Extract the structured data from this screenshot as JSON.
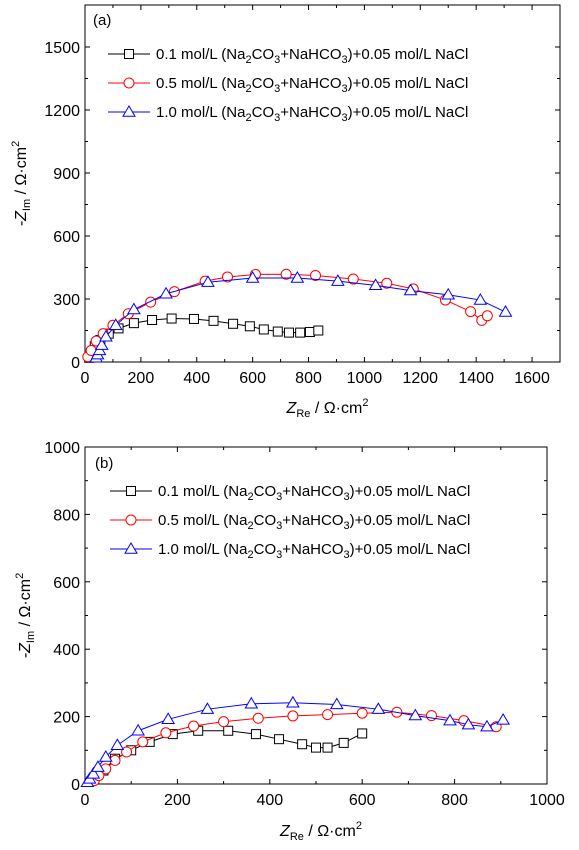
{
  "colors": {
    "s1": "#000000",
    "s2": "#ff0000",
    "s3": "#0000ff"
  },
  "chart_data": [
    {
      "type": "scatter",
      "panel_label": "(a)",
      "xlabel_main": "Z",
      "xlabel_sub": "Re",
      "xlabel_unit": " / Ω·cm",
      "xlabel_sup": "2",
      "ylabel_main": "-Z",
      "ylabel_sub": "Im",
      "ylabel_unit": " / Ω·cm",
      "ylabel_sup": "2",
      "xlim": [
        0,
        1700
      ],
      "ylim": [
        0,
        1700
      ],
      "xticks": [
        0,
        200,
        400,
        600,
        800,
        1000,
        1200,
        1400,
        1600
      ],
      "yticks": [
        0,
        300,
        600,
        900,
        1200,
        1500
      ],
      "legend": "top-right",
      "series": [
        {
          "name": "0.1 mol/L (Na2CO3+NaHCO3)+0.05 mol/L NaCl",
          "legend_parts": [
            "0.1 mol/L (Na",
            "2",
            "CO",
            "3",
            "+NaHCO",
            "3",
            ")+0.05 mol/L NaCl"
          ],
          "marker": "square",
          "color": "#000000",
          "x": [
            15,
            25,
            35,
            55,
            85,
            120,
            175,
            240,
            310,
            390,
            460,
            530,
            590,
            640,
            690,
            730,
            770,
            805,
            835
          ],
          "y": [
            20,
            45,
            75,
            105,
            135,
            160,
            185,
            200,
            207,
            205,
            196,
            182,
            170,
            155,
            145,
            140,
            140,
            143,
            150
          ]
        },
        {
          "name": "0.5 mol/L (Na2CO3+NaHCO3)+0.05 mol/L NaCl",
          "legend_parts": [
            "0.5 mol/L (Na",
            "2",
            "CO",
            "3",
            "+NaHCO",
            "3",
            ")+0.05 mol/L NaCl"
          ],
          "marker": "circle",
          "color": "#ff0000",
          "x": [
            10,
            22,
            40,
            65,
            100,
            155,
            235,
            320,
            430,
            510,
            610,
            720,
            825,
            960,
            1080,
            1175,
            1290,
            1380,
            1420,
            1440
          ],
          "y": [
            25,
            55,
            100,
            135,
            175,
            230,
            285,
            335,
            385,
            405,
            417,
            418,
            412,
            395,
            375,
            348,
            295,
            240,
            198,
            220
          ]
        },
        {
          "name": "1.0 mol/L (Na2CO3+NaHCO3)+0.05 mol/L NaCl",
          "legend_parts": [
            "1.0 mol/L (Na",
            "2",
            "CO",
            "3",
            "+NaHCO",
            "3",
            ")+0.05 mol/L NaCl"
          ],
          "marker": "triangle",
          "color": "#0000ff",
          "x": [
            40,
            45,
            52,
            60,
            75,
            110,
            175,
            290,
            440,
            600,
            760,
            905,
            1040,
            1165,
            1300,
            1415,
            1505
          ],
          "y": [
            20,
            35,
            55,
            80,
            120,
            175,
            250,
            325,
            380,
            400,
            400,
            385,
            365,
            340,
            320,
            295,
            238
          ]
        }
      ]
    },
    {
      "type": "scatter",
      "panel_label": "(b)",
      "xlabel_main": "Z",
      "xlabel_sub": "Re",
      "xlabel_unit": " / Ω·cm",
      "xlabel_sup": "2",
      "ylabel_main": "-Z",
      "ylabel_sub": "Im",
      "ylabel_unit": " / Ω·cm",
      "ylabel_sup": "2",
      "xlim": [
        0,
        1000
      ],
      "ylim": [
        0,
        1000
      ],
      "xticks": [
        0,
        200,
        400,
        600,
        800,
        1000
      ],
      "yticks": [
        0,
        200,
        400,
        600,
        800,
        1000
      ],
      "legend": "top-right",
      "series": [
        {
          "name": "0.1 mol/L (Na2CO3+NaHCO3)+0.05 mol/L NaCl",
          "legend_parts": [
            "0.1 mol/L (Na",
            "2",
            "CO",
            "3",
            "+NaHCO",
            "3",
            ")+0.05 mol/L NaCl"
          ],
          "marker": "square",
          "color": "#000000",
          "x": [
            20,
            40,
            65,
            100,
            140,
            190,
            245,
            310,
            370,
            420,
            470,
            500,
            525,
            560,
            600
          ],
          "y": [
            15,
            40,
            75,
            100,
            125,
            148,
            158,
            158,
            148,
            133,
            118,
            108,
            108,
            122,
            150
          ]
        },
        {
          "name": "0.5 mol/L (Na2CO3+NaHCO3)+0.05 mol/L NaCl",
          "legend_parts": [
            "0.5 mol/L (Na",
            "2",
            "CO",
            "3",
            "+NaHCO",
            "3",
            ")+0.05 mol/L NaCl"
          ],
          "marker": "circle",
          "color": "#ff0000",
          "x": [
            20,
            30,
            45,
            65,
            90,
            125,
            175,
            235,
            300,
            375,
            450,
            525,
            600,
            675,
            750,
            820,
            890
          ],
          "y": [
            10,
            25,
            45,
            70,
            95,
            125,
            152,
            172,
            185,
            195,
            202,
            206,
            210,
            213,
            203,
            188,
            170
          ]
        },
        {
          "name": "1.0 mol/L (Na2CO3+NaHCO3)+0.05 mol/L NaCl",
          "legend_parts": [
            "1.0 mol/L (Na",
            "2",
            "CO",
            "3",
            "+NaHCO",
            "3",
            ")+0.05 mol/L NaCl"
          ],
          "marker": "triangle",
          "color": "#0000ff",
          "x": [
            5,
            10,
            18,
            28,
            45,
            70,
            115,
            180,
            265,
            360,
            450,
            545,
            635,
            715,
            790,
            830,
            870,
            905
          ],
          "y": [
            5,
            15,
            30,
            50,
            80,
            115,
            158,
            192,
            222,
            238,
            241,
            236,
            222,
            203,
            188,
            176,
            170,
            190
          ]
        }
      ]
    }
  ]
}
